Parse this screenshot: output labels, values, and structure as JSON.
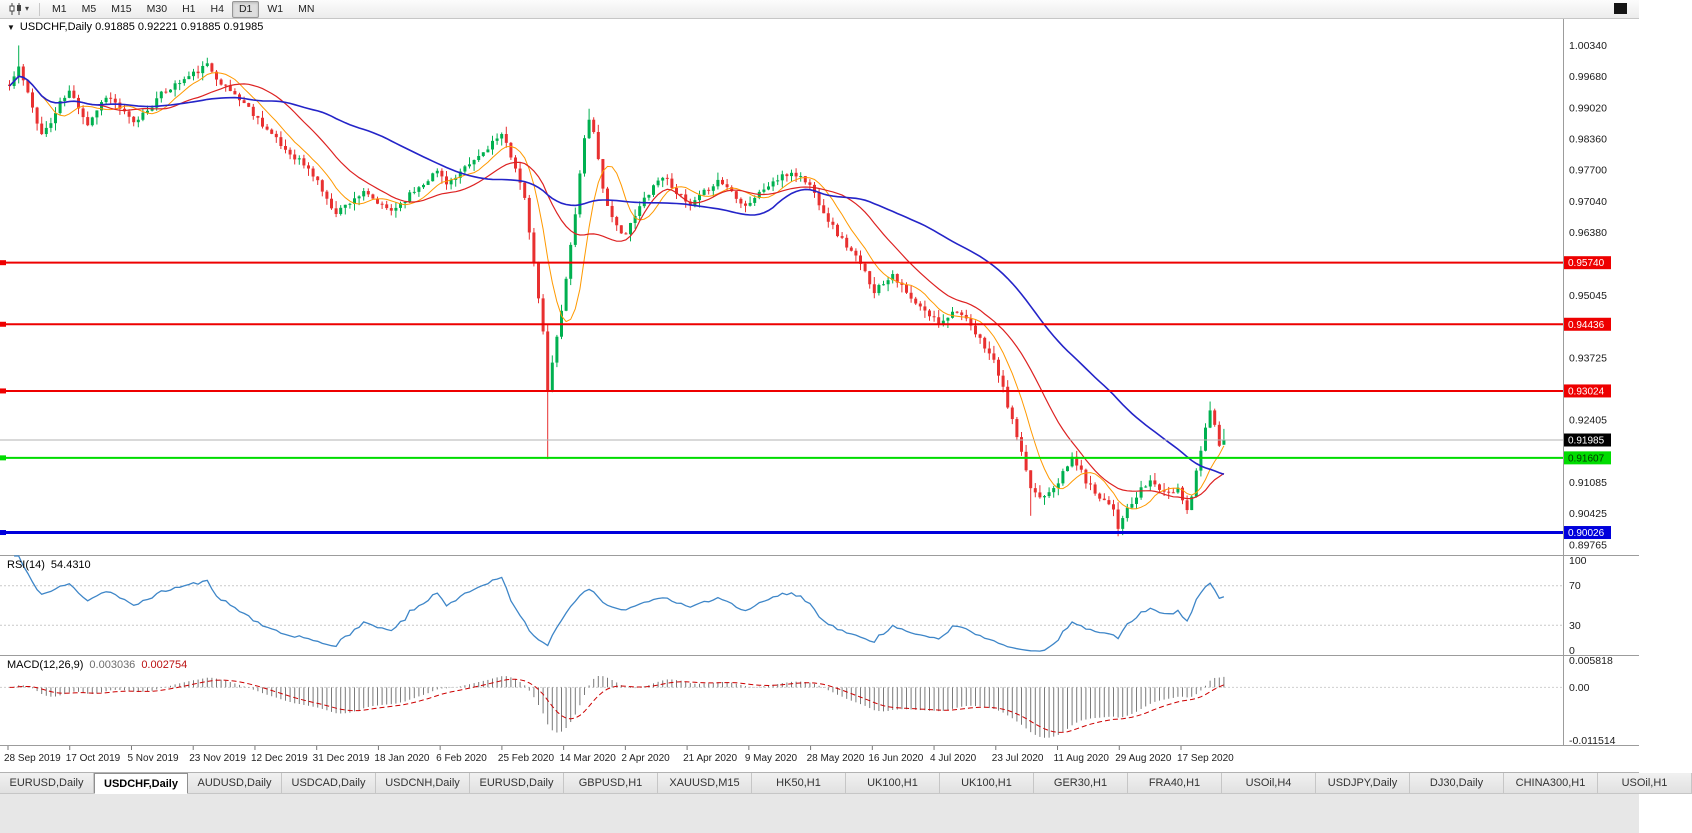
{
  "toolbar": {
    "chart_type_button": {
      "icon": "candlestick-chart-icon",
      "caret": "▾"
    },
    "timeframes": [
      "M1",
      "M5",
      "M15",
      "M30",
      "H1",
      "H4",
      "D1",
      "W1",
      "MN"
    ],
    "active_timeframe": "D1"
  },
  "chart": {
    "header": {
      "collapse_icon": "▼",
      "text": "USDCHF,Daily  0.91885 0.92221 0.91885 0.91985"
    },
    "price_scale_labels": [
      "1.00340",
      "0.99680",
      "0.99020",
      "0.98360",
      "0.97700",
      "0.97040",
      "0.96380",
      "0.95045",
      "0.93725",
      "0.92405",
      "0.91085",
      "0.90425",
      "0.89765"
    ],
    "price_tags": [
      {
        "text": "0.95740",
        "bg": "#EE0000",
        "fg": "#FFFFFF"
      },
      {
        "text": "0.94436",
        "bg": "#EE0000",
        "fg": "#FFFFFF"
      },
      {
        "text": "0.93024",
        "bg": "#EE0000",
        "fg": "#FFFFFF"
      },
      {
        "text": "0.91985",
        "bg": "#000000",
        "fg": "#FFFFFF"
      },
      {
        "text": "0.91607",
        "bg": "#00DC00",
        "fg": "#003300"
      },
      {
        "text": "0.90026",
        "bg": "#0000DC",
        "fg": "#FFFFFF"
      }
    ],
    "hlines": [
      {
        "price": "0.95740",
        "color": "#EE0000",
        "w": 2
      },
      {
        "price": "0.94436",
        "color": "#EE0000",
        "w": 2
      },
      {
        "price": "0.93024",
        "color": "#EE0000",
        "w": 2
      },
      {
        "price": "0.91607",
        "color": "#00DC00",
        "w": 2
      },
      {
        "price": "0.90026",
        "color": "#0000DC",
        "w": 3
      }
    ],
    "bid": {
      "text": "0.91985",
      "color": "#B3B3B3"
    },
    "dates": [
      "28 Sep 2019",
      "17 Oct 2019",
      "5 Nov 2019",
      "23 Nov 2019",
      "12 Dec 2019",
      "31 Dec 2019",
      "18 Jan 2020",
      "6 Feb 2020",
      "25 Feb 2020",
      "14 Mar 2020",
      "2 Apr 2020",
      "21 Apr 2020",
      "9 May 2020",
      "28 May 2020",
      "16 Jun 2020",
      "4 Jul 2020",
      "23 Jul 2020",
      "11 Aug 2020",
      "29 Aug 2020",
      "17 Sep 2020"
    ]
  },
  "indicators": {
    "rsi": {
      "name": "RSI(14)",
      "value": "54.4310",
      "levels": [
        "100",
        "70",
        "30",
        "0"
      ],
      "color": "#3E86C8"
    },
    "macd": {
      "name": "MACD(12,26,9)",
      "value_main": "0.003036",
      "value_signal": "0.002754",
      "levels": [
        "0.005818",
        "0.00",
        "-0.011514"
      ],
      "hist_color": "#7A7A7A",
      "signal_color": "#CC0000"
    }
  },
  "tabs": {
    "active_index": 1,
    "items": [
      "EURUSD,Daily",
      "USDCHF,Daily",
      "AUDUSD,Daily",
      "USDCAD,Daily",
      "USDCNH,Daily",
      "EURUSD,Daily",
      "GBPUSD,H1",
      "XAUUSD,M15",
      "HK50,H1",
      "UK100,H1",
      "UK100,H1",
      "GER30,H1",
      "FRA40,H1",
      "USOil,H4",
      "USDJPY,Daily",
      "DJ30,Daily",
      "CHINA300,H1",
      "USOil,H1"
    ]
  },
  "chart_data": {
    "type": "candlestick",
    "symbol": "USDCHF",
    "timeframe": "Daily",
    "current_bar": {
      "open": 0.91885,
      "high": 0.92221,
      "low": 0.91885,
      "close": 0.91985
    },
    "price_axis_range": [
      0.8955,
      1.009
    ],
    "horizontal_levels": [
      0.9574,
      0.94436,
      0.93024,
      0.91607,
      0.90026
    ],
    "rsi_current": 54.431,
    "macd_current": {
      "main": 0.003036,
      "signal": 0.002754
    },
    "bars": 265,
    "bar_spacing": 4.6,
    "left_pad": 8,
    "body_width": 3,
    "noise": {
      "seed": 11,
      "close_amp": 0.0013,
      "wick_amp": 0.0016
    },
    "anchors": [
      [
        0,
        0.9948
      ],
      [
        2,
        0.9988
      ],
      [
        4,
        0.993
      ],
      [
        7,
        0.9846
      ],
      [
        9,
        0.987
      ],
      [
        11,
        0.9912
      ],
      [
        13,
        0.9936
      ],
      [
        15,
        0.9905
      ],
      [
        17,
        0.9868
      ],
      [
        19,
        0.9898
      ],
      [
        21,
        0.9928
      ],
      [
        23,
        0.9912
      ],
      [
        25,
        0.989
      ],
      [
        27,
        0.9868
      ],
      [
        29,
        0.989
      ],
      [
        31,
        0.9908
      ],
      [
        33,
        0.993
      ],
      [
        35,
        0.9945
      ],
      [
        38,
        0.9962
      ],
      [
        41,
        0.998
      ],
      [
        43,
        0.9992
      ],
      [
        45,
        0.9968
      ],
      [
        47,
        0.9945
      ],
      [
        49,
        0.993
      ],
      [
        51,
        0.9912
      ],
      [
        53,
        0.989
      ],
      [
        55,
        0.9868
      ],
      [
        57,
        0.9845
      ],
      [
        59,
        0.9822
      ],
      [
        61,
        0.9805
      ],
      [
        63,
        0.9792
      ],
      [
        65,
        0.977
      ],
      [
        67,
        0.9748
      ],
      [
        69,
        0.9705
      ],
      [
        71,
        0.9682
      ],
      [
        73,
        0.9695
      ],
      [
        75,
        0.9712
      ],
      [
        77,
        0.972
      ],
      [
        79,
        0.9708
      ],
      [
        81,
        0.9692
      ],
      [
        83,
        0.9685
      ],
      [
        85,
        0.97
      ],
      [
        87,
        0.9718
      ],
      [
        89,
        0.9735
      ],
      [
        91,
        0.9752
      ],
      [
        93,
        0.9768
      ],
      [
        95,
        0.9745
      ],
      [
        97,
        0.9752
      ],
      [
        99,
        0.9772
      ],
      [
        101,
        0.979
      ],
      [
        103,
        0.9808
      ],
      [
        105,
        0.983
      ],
      [
        107,
        0.984
      ],
      [
        108,
        0.9825
      ],
      [
        110,
        0.9778
      ],
      [
        112,
        0.9705
      ],
      [
        113,
        0.964
      ],
      [
        114,
        0.9568
      ],
      [
        115,
        0.95
      ],
      [
        116,
        0.9425
      ],
      [
        117,
        0.93
      ],
      [
        118,
        0.9368
      ],
      [
        119,
        0.942
      ],
      [
        120,
        0.947
      ],
      [
        121,
        0.954
      ],
      [
        122,
        0.961
      ],
      [
        123,
        0.968
      ],
      [
        124,
        0.976
      ],
      [
        125,
        0.984
      ],
      [
        126,
        0.9882
      ],
      [
        127,
        0.985
      ],
      [
        128,
        0.9795
      ],
      [
        129,
        0.9735
      ],
      [
        130,
        0.969
      ],
      [
        131,
        0.9665
      ],
      [
        132,
        0.965
      ],
      [
        134,
        0.9635
      ],
      [
        136,
        0.9672
      ],
      [
        138,
        0.971
      ],
      [
        140,
        0.9738
      ],
      [
        142,
        0.9758
      ],
      [
        144,
        0.9738
      ],
      [
        146,
        0.9712
      ],
      [
        148,
        0.9692
      ],
      [
        150,
        0.9712
      ],
      [
        152,
        0.9732
      ],
      [
        154,
        0.9748
      ],
      [
        156,
        0.9735
      ],
      [
        158,
        0.9715
      ],
      [
        160,
        0.9695
      ],
      [
        162,
        0.9712
      ],
      [
        164,
        0.973
      ],
      [
        166,
        0.9745
      ],
      [
        168,
        0.9755
      ],
      [
        170,
        0.9765
      ],
      [
        172,
        0.9755
      ],
      [
        174,
        0.9738
      ],
      [
        176,
        0.9702
      ],
      [
        178,
        0.9665
      ],
      [
        180,
        0.9635
      ],
      [
        182,
        0.961
      ],
      [
        184,
        0.9585
      ],
      [
        186,
        0.9552
      ],
      [
        188,
        0.9515
      ],
      [
        190,
        0.9532
      ],
      [
        192,
        0.9552
      ],
      [
        194,
        0.9522
      ],
      [
        196,
        0.9495
      ],
      [
        198,
        0.9478
      ],
      [
        200,
        0.9462
      ],
      [
        202,
        0.9448
      ],
      [
        204,
        0.9462
      ],
      [
        206,
        0.9475
      ],
      [
        208,
        0.945
      ],
      [
        210,
        0.9422
      ],
      [
        212,
        0.9398
      ],
      [
        214,
        0.9365
      ],
      [
        215,
        0.9338
      ],
      [
        216,
        0.9305
      ],
      [
        217,
        0.9272
      ],
      [
        218,
        0.9238
      ],
      [
        219,
        0.9205
      ],
      [
        220,
        0.9168
      ],
      [
        221,
        0.9128
      ],
      [
        222,
        0.9098
      ],
      [
        224,
        0.9078
      ],
      [
        226,
        0.9092
      ],
      [
        228,
        0.9112
      ],
      [
        230,
        0.9142
      ],
      [
        231,
        0.9162
      ],
      [
        232,
        0.9148
      ],
      [
        234,
        0.9112
      ],
      [
        236,
        0.9088
      ],
      [
        238,
        0.9072
      ],
      [
        240,
        0.9056
      ],
      [
        241,
        0.9012
      ],
      [
        242,
        0.9038
      ],
      [
        244,
        0.9062
      ],
      [
        246,
        0.9092
      ],
      [
        248,
        0.9112
      ],
      [
        250,
        0.9096
      ],
      [
        252,
        0.9082
      ],
      [
        254,
        0.9098
      ],
      [
        255,
        0.9072
      ],
      [
        256,
        0.9055
      ],
      [
        257,
        0.9082
      ],
      [
        258,
        0.9132
      ],
      [
        259,
        0.9182
      ],
      [
        260,
        0.923
      ],
      [
        261,
        0.9258
      ],
      [
        262,
        0.9235
      ],
      [
        263,
        0.919
      ],
      [
        264,
        0.91985
      ]
    ],
    "special_wicks": {
      "high": {
        "2": 1.0034,
        "43": 1.0008,
        "126": 0.99,
        "261": 0.928
      },
      "low": {
        "117": 0.9158,
        "222": 0.9038,
        "241": 0.8998,
        "256": 0.9042
      }
    },
    "moving_averages": [
      {
        "period": 8,
        "color": "#FF9900",
        "width": 1
      },
      {
        "period": 20,
        "color": "#DD2222",
        "width": 1.2
      },
      {
        "period": 50,
        "color": "#2424C8",
        "width": 1.6
      }
    ],
    "up_color": "#00B050",
    "down_color": "#E83030",
    "macd_range": [
      -0.0125,
      0.0068
    ]
  }
}
